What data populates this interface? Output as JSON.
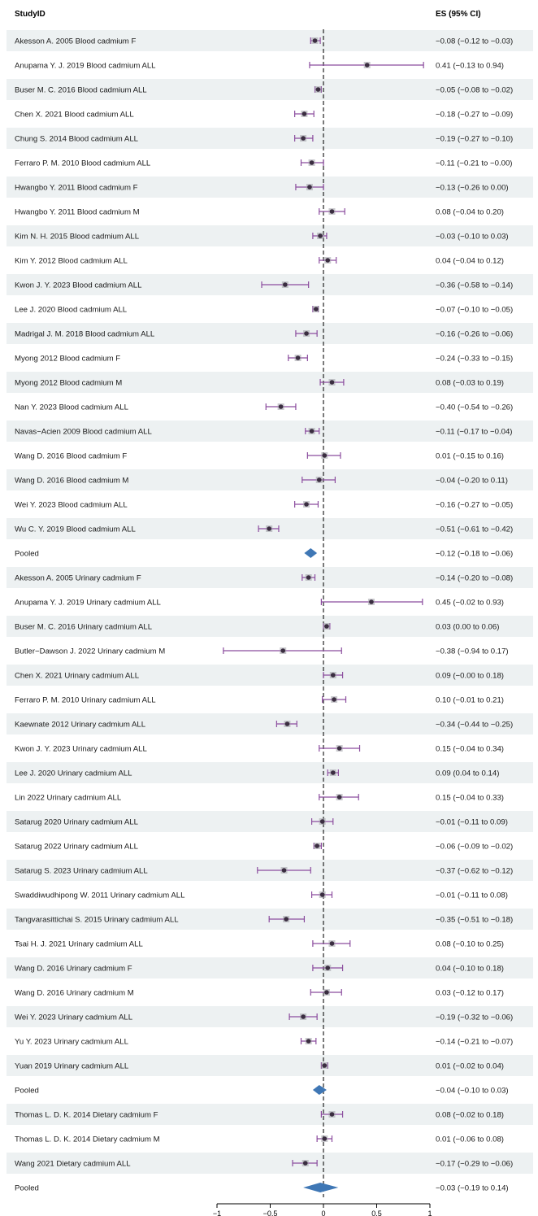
{
  "chart_data": {
    "type": "forest",
    "header": {
      "study_col": "StudyID",
      "es_col": "ES (95% CI)"
    },
    "null_line": 0,
    "xlim": [
      -1,
      1
    ],
    "x_ticks": [
      -1,
      -0.5,
      0,
      0.5,
      1
    ],
    "x_tick_labels": [
      "−1",
      "−0.5",
      "0",
      "0.5",
      "1"
    ],
    "colors": {
      "ci_line": "#8b4c9e",
      "point": "#3a2d40",
      "pooled": "#3f77b5",
      "band": "#edf1f2"
    },
    "rows": [
      {
        "label": "Akesson A. 2005 Blood cadmium F",
        "es": -0.08,
        "lo": -0.12,
        "hi": -0.03,
        "ci_text": "−0.08 (−0.12 to −0.03)",
        "pooled": false
      },
      {
        "label": "Anupama Y. J. 2019 Blood cadmium ALL",
        "es": 0.41,
        "lo": -0.13,
        "hi": 0.94,
        "ci_text": "0.41 (−0.13 to 0.94)",
        "pooled": false
      },
      {
        "label": "Buser M. C.  2016 Blood cadmium ALL",
        "es": -0.05,
        "lo": -0.08,
        "hi": -0.02,
        "ci_text": "−0.05 (−0.08 to −0.02)",
        "pooled": false
      },
      {
        "label": "Chen X. 2021 Blood cadmium ALL",
        "es": -0.18,
        "lo": -0.27,
        "hi": -0.09,
        "ci_text": "−0.18 (−0.27 to −0.09)",
        "pooled": false
      },
      {
        "label": "Chung S. 2014 Blood cadmium ALL",
        "es": -0.19,
        "lo": -0.27,
        "hi": -0.1,
        "ci_text": "−0.19 (−0.27 to −0.10)",
        "pooled": false
      },
      {
        "label": "Ferraro P. M. 2010 Blood cadmium ALL",
        "es": -0.11,
        "lo": -0.21,
        "hi": -0.0,
        "ci_text": "−0.11 (−0.21 to −0.00)",
        "pooled": false
      },
      {
        "label": "Hwangbo Y. 2011 Blood cadmium F",
        "es": -0.13,
        "lo": -0.26,
        "hi": 0.0,
        "ci_text": "−0.13 (−0.26 to 0.00)",
        "pooled": false
      },
      {
        "label": "Hwangbo Y. 2011 Blood cadmium M",
        "es": 0.08,
        "lo": -0.04,
        "hi": 0.2,
        "ci_text": "0.08 (−0.04 to 0.20)",
        "pooled": false
      },
      {
        "label": "Kim N. H. 2015 Blood cadmium ALL",
        "es": -0.03,
        "lo": -0.1,
        "hi": 0.03,
        "ci_text": "−0.03 (−0.10 to 0.03)",
        "pooled": false
      },
      {
        "label": "Kim Y. 2012 Blood cadmium ALL",
        "es": 0.04,
        "lo": -0.04,
        "hi": 0.12,
        "ci_text": "0.04 (−0.04 to 0.12)",
        "pooled": false
      },
      {
        "label": "Kwon J. Y. 2023 Blood cadmium ALL",
        "es": -0.36,
        "lo": -0.58,
        "hi": -0.14,
        "ci_text": "−0.36 (−0.58 to −0.14)",
        "pooled": false
      },
      {
        "label": "Lee J. 2020 Blood cadmium ALL",
        "es": -0.07,
        "lo": -0.1,
        "hi": -0.05,
        "ci_text": "−0.07 (−0.10 to −0.05)",
        "pooled": false
      },
      {
        "label": "Madrigal J. M. 2018 Blood cadmium ALL",
        "es": -0.16,
        "lo": -0.26,
        "hi": -0.06,
        "ci_text": "−0.16 (−0.26 to −0.06)",
        "pooled": false
      },
      {
        "label": "Myong 2012 Blood cadmium F",
        "es": -0.24,
        "lo": -0.33,
        "hi": -0.15,
        "ci_text": "−0.24 (−0.33 to −0.15)",
        "pooled": false
      },
      {
        "label": "Myong 2012 Blood cadmium M",
        "es": 0.08,
        "lo": -0.03,
        "hi": 0.19,
        "ci_text": "0.08 (−0.03 to 0.19)",
        "pooled": false
      },
      {
        "label": "Nan Y. 2023 Blood cadmium ALL",
        "es": -0.4,
        "lo": -0.54,
        "hi": -0.26,
        "ci_text": "−0.40 (−0.54 to −0.26)",
        "pooled": false
      },
      {
        "label": "Navas−Acien 2009 Blood cadmium ALL",
        "es": -0.11,
        "lo": -0.17,
        "hi": -0.04,
        "ci_text": "−0.11 (−0.17 to −0.04)",
        "pooled": false
      },
      {
        "label": "Wang D.  2016 Blood cadmium F",
        "es": 0.01,
        "lo": -0.15,
        "hi": 0.16,
        "ci_text": "0.01 (−0.15 to 0.16)",
        "pooled": false
      },
      {
        "label": "Wang D.  2016 Blood cadmium M",
        "es": -0.04,
        "lo": -0.2,
        "hi": 0.11,
        "ci_text": "−0.04 (−0.20 to 0.11)",
        "pooled": false
      },
      {
        "label": "Wei Y. 2023 Blood cadmium ALL",
        "es": -0.16,
        "lo": -0.27,
        "hi": -0.05,
        "ci_text": "−0.16 (−0.27 to −0.05)",
        "pooled": false
      },
      {
        "label": "Wu C. Y. 2019 Blood cadmium ALL",
        "es": -0.51,
        "lo": -0.61,
        "hi": -0.42,
        "ci_text": "−0.51 (−0.61 to −0.42)",
        "pooled": false
      },
      {
        "label": "Pooled",
        "es": -0.12,
        "lo": -0.18,
        "hi": -0.06,
        "ci_text": "−0.12 (−0.18 to −0.06)",
        "pooled": true
      },
      {
        "label": "Akesson A. 2005 Urinary cadmium F",
        "es": -0.14,
        "lo": -0.2,
        "hi": -0.08,
        "ci_text": "−0.14 (−0.20 to −0.08)",
        "pooled": false
      },
      {
        "label": "Anupama Y. J. 2019 Urinary cadmium ALL",
        "es": 0.45,
        "lo": -0.02,
        "hi": 0.93,
        "ci_text": "0.45 (−0.02 to 0.93)",
        "pooled": false
      },
      {
        "label": "Buser M. C.  2016 Urinary cadmium ALL",
        "es": 0.03,
        "lo": 0.0,
        "hi": 0.06,
        "ci_text": "0.03 (0.00 to 0.06)",
        "pooled": false
      },
      {
        "label": "Butler−Dawson J. 2022 Urinary cadmium M",
        "es": -0.38,
        "lo": -0.94,
        "hi": 0.17,
        "ci_text": "−0.38 (−0.94 to 0.17)",
        "pooled": false
      },
      {
        "label": "Chen X. 2021 Urinary cadmium ALL",
        "es": 0.09,
        "lo": -0.0,
        "hi": 0.18,
        "ci_text": "0.09 (−0.00 to 0.18)",
        "pooled": false
      },
      {
        "label": "Ferraro P. M. 2010 Urinary cadmium ALL",
        "es": 0.1,
        "lo": -0.01,
        "hi": 0.21,
        "ci_text": "0.10 (−0.01 to 0.21)",
        "pooled": false
      },
      {
        "label": "Kaewnate 2012 Urinary cadmium ALL",
        "es": -0.34,
        "lo": -0.44,
        "hi": -0.25,
        "ci_text": "−0.34 (−0.44 to −0.25)",
        "pooled": false
      },
      {
        "label": "Kwon J. Y. 2023 Urinary cadmium ALL",
        "es": 0.15,
        "lo": -0.04,
        "hi": 0.34,
        "ci_text": "0.15 (−0.04 to 0.34)",
        "pooled": false
      },
      {
        "label": "Lee J. 2020 Urinary cadmium ALL",
        "es": 0.09,
        "lo": 0.04,
        "hi": 0.14,
        "ci_text": "0.09 (0.04 to 0.14)",
        "pooled": false
      },
      {
        "label": "Lin 2022 Urinary cadmium ALL",
        "es": 0.15,
        "lo": -0.04,
        "hi": 0.33,
        "ci_text": "0.15 (−0.04 to 0.33)",
        "pooled": false
      },
      {
        "label": "Satarug 2020 Urinary cadmium ALL",
        "es": -0.01,
        "lo": -0.11,
        "hi": 0.09,
        "ci_text": "−0.01 (−0.11 to 0.09)",
        "pooled": false
      },
      {
        "label": "Satarug 2022 Urinary cadmium ALL",
        "es": -0.06,
        "lo": -0.09,
        "hi": -0.02,
        "ci_text": "−0.06 (−0.09 to −0.02)",
        "pooled": false
      },
      {
        "label": "Satarug S. 2023 Urinary cadmium ALL",
        "es": -0.37,
        "lo": -0.62,
        "hi": -0.12,
        "ci_text": "−0.37 (−0.62 to −0.12)",
        "pooled": false
      },
      {
        "label": "Swaddiwudhipong W. 2011 Urinary cadmium ALL",
        "es": -0.01,
        "lo": -0.11,
        "hi": 0.08,
        "ci_text": "−0.01 (−0.11 to 0.08)",
        "pooled": false
      },
      {
        "label": "Tangvarasittichai S. 2015 Urinary cadmium ALL",
        "es": -0.35,
        "lo": -0.51,
        "hi": -0.18,
        "ci_text": "−0.35 (−0.51 to −0.18)",
        "pooled": false
      },
      {
        "label": "Tsai H. J. 2021 Urinary cadmium ALL",
        "es": 0.08,
        "lo": -0.1,
        "hi": 0.25,
        "ci_text": "0.08 (−0.10 to 0.25)",
        "pooled": false
      },
      {
        "label": "Wang D.  2016 Urinary cadmium F",
        "es": 0.04,
        "lo": -0.1,
        "hi": 0.18,
        "ci_text": "0.04 (−0.10 to 0.18)",
        "pooled": false
      },
      {
        "label": "Wang D.  2016 Urinary cadmium M",
        "es": 0.03,
        "lo": -0.12,
        "hi": 0.17,
        "ci_text": "0.03 (−0.12 to 0.17)",
        "pooled": false
      },
      {
        "label": "Wei Y. 2023 Urinary cadmium ALL",
        "es": -0.19,
        "lo": -0.32,
        "hi": -0.06,
        "ci_text": "−0.19 (−0.32 to −0.06)",
        "pooled": false
      },
      {
        "label": "Yu Y. 2023 Urinary cadmium ALL",
        "es": -0.14,
        "lo": -0.21,
        "hi": -0.07,
        "ci_text": "−0.14 (−0.21 to −0.07)",
        "pooled": false
      },
      {
        "label": "Yuan 2019 Urinary cadmium ALL",
        "es": 0.01,
        "lo": -0.02,
        "hi": 0.04,
        "ci_text": "0.01 (−0.02 to 0.04)",
        "pooled": false
      },
      {
        "label": "Pooled",
        "es": -0.04,
        "lo": -0.1,
        "hi": 0.03,
        "ci_text": "−0.04 (−0.10 to 0.03)",
        "pooled": true
      },
      {
        "label": "Thomas L. D. K. 2014 Dietary cadmium F",
        "es": 0.08,
        "lo": -0.02,
        "hi": 0.18,
        "ci_text": "0.08 (−0.02 to 0.18)",
        "pooled": false
      },
      {
        "label": "Thomas L. D. K. 2014 Dietary cadmium M",
        "es": 0.01,
        "lo": -0.06,
        "hi": 0.08,
        "ci_text": "0.01 (−0.06 to 0.08)",
        "pooled": false
      },
      {
        "label": "Wang 2021 Dietary cadmium ALL",
        "es": -0.17,
        "lo": -0.29,
        "hi": -0.06,
        "ci_text": "−0.17 (−0.29 to −0.06)",
        "pooled": false
      },
      {
        "label": "Pooled",
        "es": -0.03,
        "lo": -0.19,
        "hi": 0.14,
        "ci_text": "−0.03 (−0.19 to 0.14)",
        "pooled": true
      }
    ]
  }
}
